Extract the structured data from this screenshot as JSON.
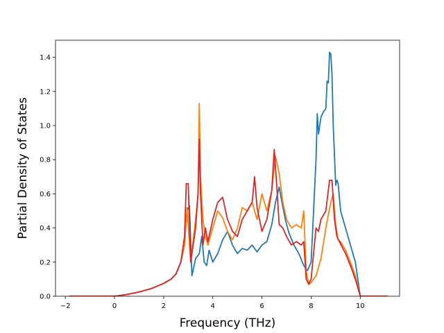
{
  "chart_data": {
    "type": "line",
    "title": "",
    "xlabel": "Frequency (THz)",
    "ylabel": "Partial Density of States",
    "xlim": [
      -2.4,
      11.6
    ],
    "ylim": [
      0.0,
      1.5
    ],
    "xticks": [
      -2,
      0,
      2,
      4,
      6,
      8,
      10
    ],
    "yticks": [
      0.0,
      0.2,
      0.4,
      0.6,
      0.8,
      1.0,
      1.2,
      1.4
    ],
    "xtick_labels": [
      "−2",
      "0",
      "2",
      "4",
      "6",
      "8",
      "10"
    ],
    "ytick_labels": [
      "0.0",
      "0.2",
      "0.4",
      "0.6",
      "0.8",
      "1.0",
      "1.2",
      "1.4"
    ],
    "grid": false,
    "legend": "none",
    "series": [
      {
        "color": "#1f77b4",
        "x": [
          -1.85,
          -1.0,
          0.0,
          0.5,
          1.0,
          1.5,
          2.0,
          2.3,
          2.5,
          2.7,
          2.85,
          2.95,
          3.05,
          3.15,
          3.3,
          3.45,
          3.55,
          3.65,
          3.75,
          3.85,
          4.0,
          4.2,
          4.4,
          4.6,
          4.8,
          5.0,
          5.2,
          5.4,
          5.6,
          5.8,
          6.0,
          6.2,
          6.4,
          6.55,
          6.7,
          6.8,
          6.95,
          7.1,
          7.3,
          7.5,
          7.7,
          7.85,
          8.0,
          8.1,
          8.2,
          8.25,
          8.3,
          8.4,
          8.5,
          8.6,
          8.65,
          8.7,
          8.75,
          8.8,
          8.85,
          8.9,
          9.0,
          9.05,
          9.1,
          9.2,
          9.4,
          9.6,
          9.8,
          10.0,
          10.2,
          11.1
        ],
        "y": [
          0.0,
          0.0,
          0.0,
          0.01,
          0.025,
          0.045,
          0.075,
          0.1,
          0.13,
          0.2,
          0.3,
          0.5,
          0.53,
          0.12,
          0.22,
          0.25,
          0.35,
          0.2,
          0.18,
          0.27,
          0.2,
          0.25,
          0.33,
          0.38,
          0.3,
          0.25,
          0.28,
          0.27,
          0.3,
          0.26,
          0.3,
          0.32,
          0.42,
          0.55,
          0.64,
          0.56,
          0.45,
          0.37,
          0.3,
          0.25,
          0.18,
          0.15,
          0.2,
          0.5,
          0.8,
          1.07,
          0.95,
          1.05,
          1.08,
          1.1,
          1.26,
          1.25,
          1.43,
          1.42,
          1.3,
          1.0,
          0.65,
          0.68,
          0.66,
          0.5,
          0.4,
          0.3,
          0.2,
          0.0,
          0.0,
          0.0
        ]
      },
      {
        "color": "#ff7f0e",
        "x": [
          -1.85,
          -1.0,
          0.0,
          0.5,
          1.0,
          1.5,
          2.0,
          2.3,
          2.5,
          2.7,
          2.85,
          2.95,
          3.1,
          3.3,
          3.4,
          3.45,
          3.5,
          3.6,
          3.7,
          3.8,
          4.0,
          4.2,
          4.4,
          4.6,
          4.8,
          5.0,
          5.2,
          5.4,
          5.6,
          5.8,
          6.0,
          6.2,
          6.4,
          6.55,
          6.7,
          6.85,
          7.0,
          7.2,
          7.4,
          7.6,
          7.7,
          7.8,
          7.9,
          8.0,
          8.2,
          8.4,
          8.6,
          8.8,
          8.9,
          9.0,
          9.1,
          9.2,
          9.4,
          9.6,
          9.8,
          10.0,
          10.2,
          11.1
        ],
        "y": [
          0.0,
          0.0,
          0.0,
          0.01,
          0.025,
          0.045,
          0.075,
          0.1,
          0.13,
          0.2,
          0.3,
          0.52,
          0.2,
          0.45,
          0.6,
          1.13,
          0.7,
          0.45,
          0.35,
          0.3,
          0.4,
          0.5,
          0.46,
          0.38,
          0.33,
          0.4,
          0.52,
          0.5,
          0.55,
          0.45,
          0.6,
          0.5,
          0.62,
          0.82,
          0.72,
          0.55,
          0.45,
          0.4,
          0.42,
          0.4,
          0.5,
          0.15,
          0.07,
          0.08,
          0.12,
          0.22,
          0.4,
          0.55,
          0.6,
          0.42,
          0.33,
          0.32,
          0.27,
          0.2,
          0.12,
          0.0,
          0.0,
          0.0
        ]
      },
      {
        "color": "#d62728",
        "x": [
          -1.85,
          -1.0,
          0.0,
          0.5,
          1.0,
          1.5,
          2.0,
          2.3,
          2.5,
          2.7,
          2.85,
          2.92,
          3.0,
          3.1,
          3.2,
          3.3,
          3.4,
          3.45,
          3.5,
          3.6,
          3.7,
          3.8,
          4.0,
          4.2,
          4.4,
          4.6,
          4.8,
          5.0,
          5.2,
          5.4,
          5.6,
          5.7,
          5.8,
          6.0,
          6.2,
          6.4,
          6.5,
          6.6,
          6.7,
          6.85,
          7.0,
          7.2,
          7.4,
          7.6,
          7.7,
          7.8,
          7.9,
          8.0,
          8.1,
          8.2,
          8.3,
          8.4,
          8.6,
          8.75,
          8.85,
          8.95,
          9.05,
          9.15,
          9.4,
          9.6,
          9.8,
          10.0,
          10.2,
          11.1
        ],
        "y": [
          0.0,
          0.0,
          0.0,
          0.01,
          0.025,
          0.045,
          0.075,
          0.1,
          0.13,
          0.2,
          0.35,
          0.66,
          0.66,
          0.2,
          0.3,
          0.4,
          0.6,
          0.92,
          0.6,
          0.3,
          0.4,
          0.32,
          0.45,
          0.55,
          0.58,
          0.45,
          0.38,
          0.35,
          0.45,
          0.5,
          0.55,
          0.7,
          0.52,
          0.38,
          0.45,
          0.62,
          0.86,
          0.65,
          0.42,
          0.4,
          0.35,
          0.3,
          0.32,
          0.3,
          0.32,
          0.1,
          0.07,
          0.1,
          0.25,
          0.4,
          0.38,
          0.45,
          0.5,
          0.68,
          0.68,
          0.45,
          0.35,
          0.32,
          0.25,
          0.18,
          0.1,
          0.0,
          0.0,
          0.0
        ]
      }
    ]
  }
}
